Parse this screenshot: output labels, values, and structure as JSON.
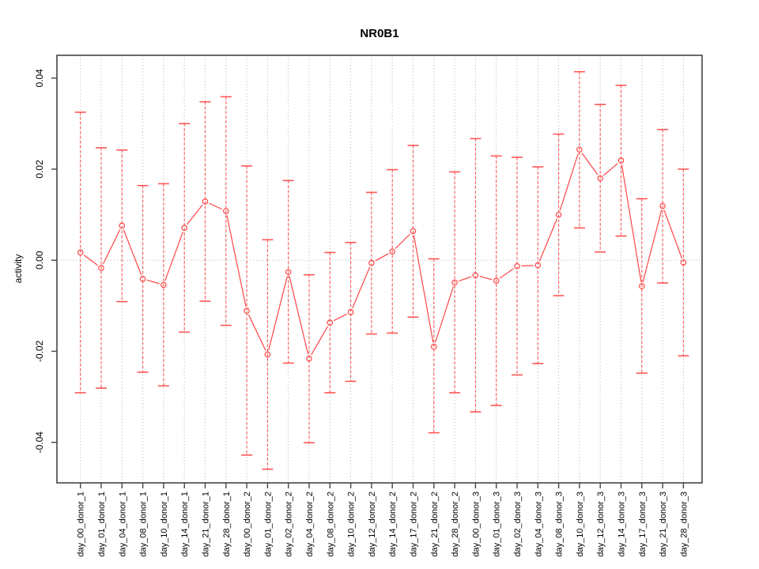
{
  "chart_data": {
    "type": "line",
    "title": "NR0B1",
    "xlabel": "",
    "ylabel": "activity",
    "legend": "none",
    "marker": "open-circle",
    "error_bars": true,
    "grid": "vertical-dotted-at-each-category-plus-dotted-zero-line",
    "ylim": [
      -0.0489,
      0.045
    ],
    "yticks": [
      -0.04,
      -0.02,
      0.0,
      0.02,
      0.04
    ],
    "categories": [
      "day_00_donor_1",
      "day_01_donor_1",
      "day_04_donor_1",
      "day_08_donor_1",
      "day_10_donor_1",
      "day_14_donor_1",
      "day_21_donor_1",
      "day_28_donor_1",
      "day_00_donor_2",
      "day_01_donor_2",
      "day_02_donor_2",
      "day_04_donor_2",
      "day_08_donor_2",
      "day_10_donor_2",
      "day_12_donor_2",
      "day_14_donor_2",
      "day_17_donor_2",
      "day_21_donor_2",
      "day_28_donor_2",
      "day_00_donor_3",
      "day_01_donor_3",
      "day_02_donor_3",
      "day_04_donor_3",
      "day_08_donor_3",
      "day_10_donor_3",
      "day_12_donor_3",
      "day_14_donor_3",
      "day_17_donor_3",
      "day_21_donor_3",
      "day_28_donor_3"
    ],
    "series": [
      {
        "name": "activity",
        "values": [
          0.0017,
          -0.0017,
          0.0076,
          -0.0041,
          -0.0054,
          0.0071,
          0.0129,
          0.0108,
          -0.0111,
          -0.0207,
          -0.0026,
          -0.0216,
          -0.0137,
          -0.0114,
          -0.0006,
          0.0019,
          0.0064,
          -0.019,
          -0.0049,
          -0.0033,
          -0.0045,
          -0.0013,
          -0.0011,
          0.01,
          0.0243,
          0.018,
          0.0219,
          -0.0057,
          0.0119,
          -0.0005
        ],
        "upper": [
          0.0325,
          0.0247,
          0.0242,
          0.0164,
          0.0168,
          0.03,
          0.0348,
          0.0359,
          0.0207,
          0.0045,
          0.0175,
          -0.0032,
          0.0017,
          0.0039,
          0.0149,
          0.0199,
          0.0252,
          0.0003,
          0.0194,
          0.0267,
          0.0229,
          0.0226,
          0.0205,
          0.0277,
          0.0414,
          0.0342,
          0.0384,
          0.0135,
          0.0287,
          0.02
        ],
        "lower": [
          -0.0291,
          -0.0281,
          -0.0091,
          -0.0246,
          -0.0276,
          -0.0158,
          -0.009,
          -0.0143,
          -0.0428,
          -0.0459,
          -0.0226,
          -0.0401,
          -0.0291,
          -0.0266,
          -0.0162,
          -0.016,
          -0.0125,
          -0.0379,
          -0.0291,
          -0.0333,
          -0.0319,
          -0.0252,
          -0.0227,
          -0.0078,
          0.0071,
          0.0018,
          0.0053,
          -0.0248,
          -0.005,
          -0.021
        ]
      }
    ],
    "colors": {
      "series": "#ff4545",
      "grid": "#c9c9c9",
      "box": "#454545",
      "text": "#000000",
      "background": "#ffffff"
    }
  }
}
